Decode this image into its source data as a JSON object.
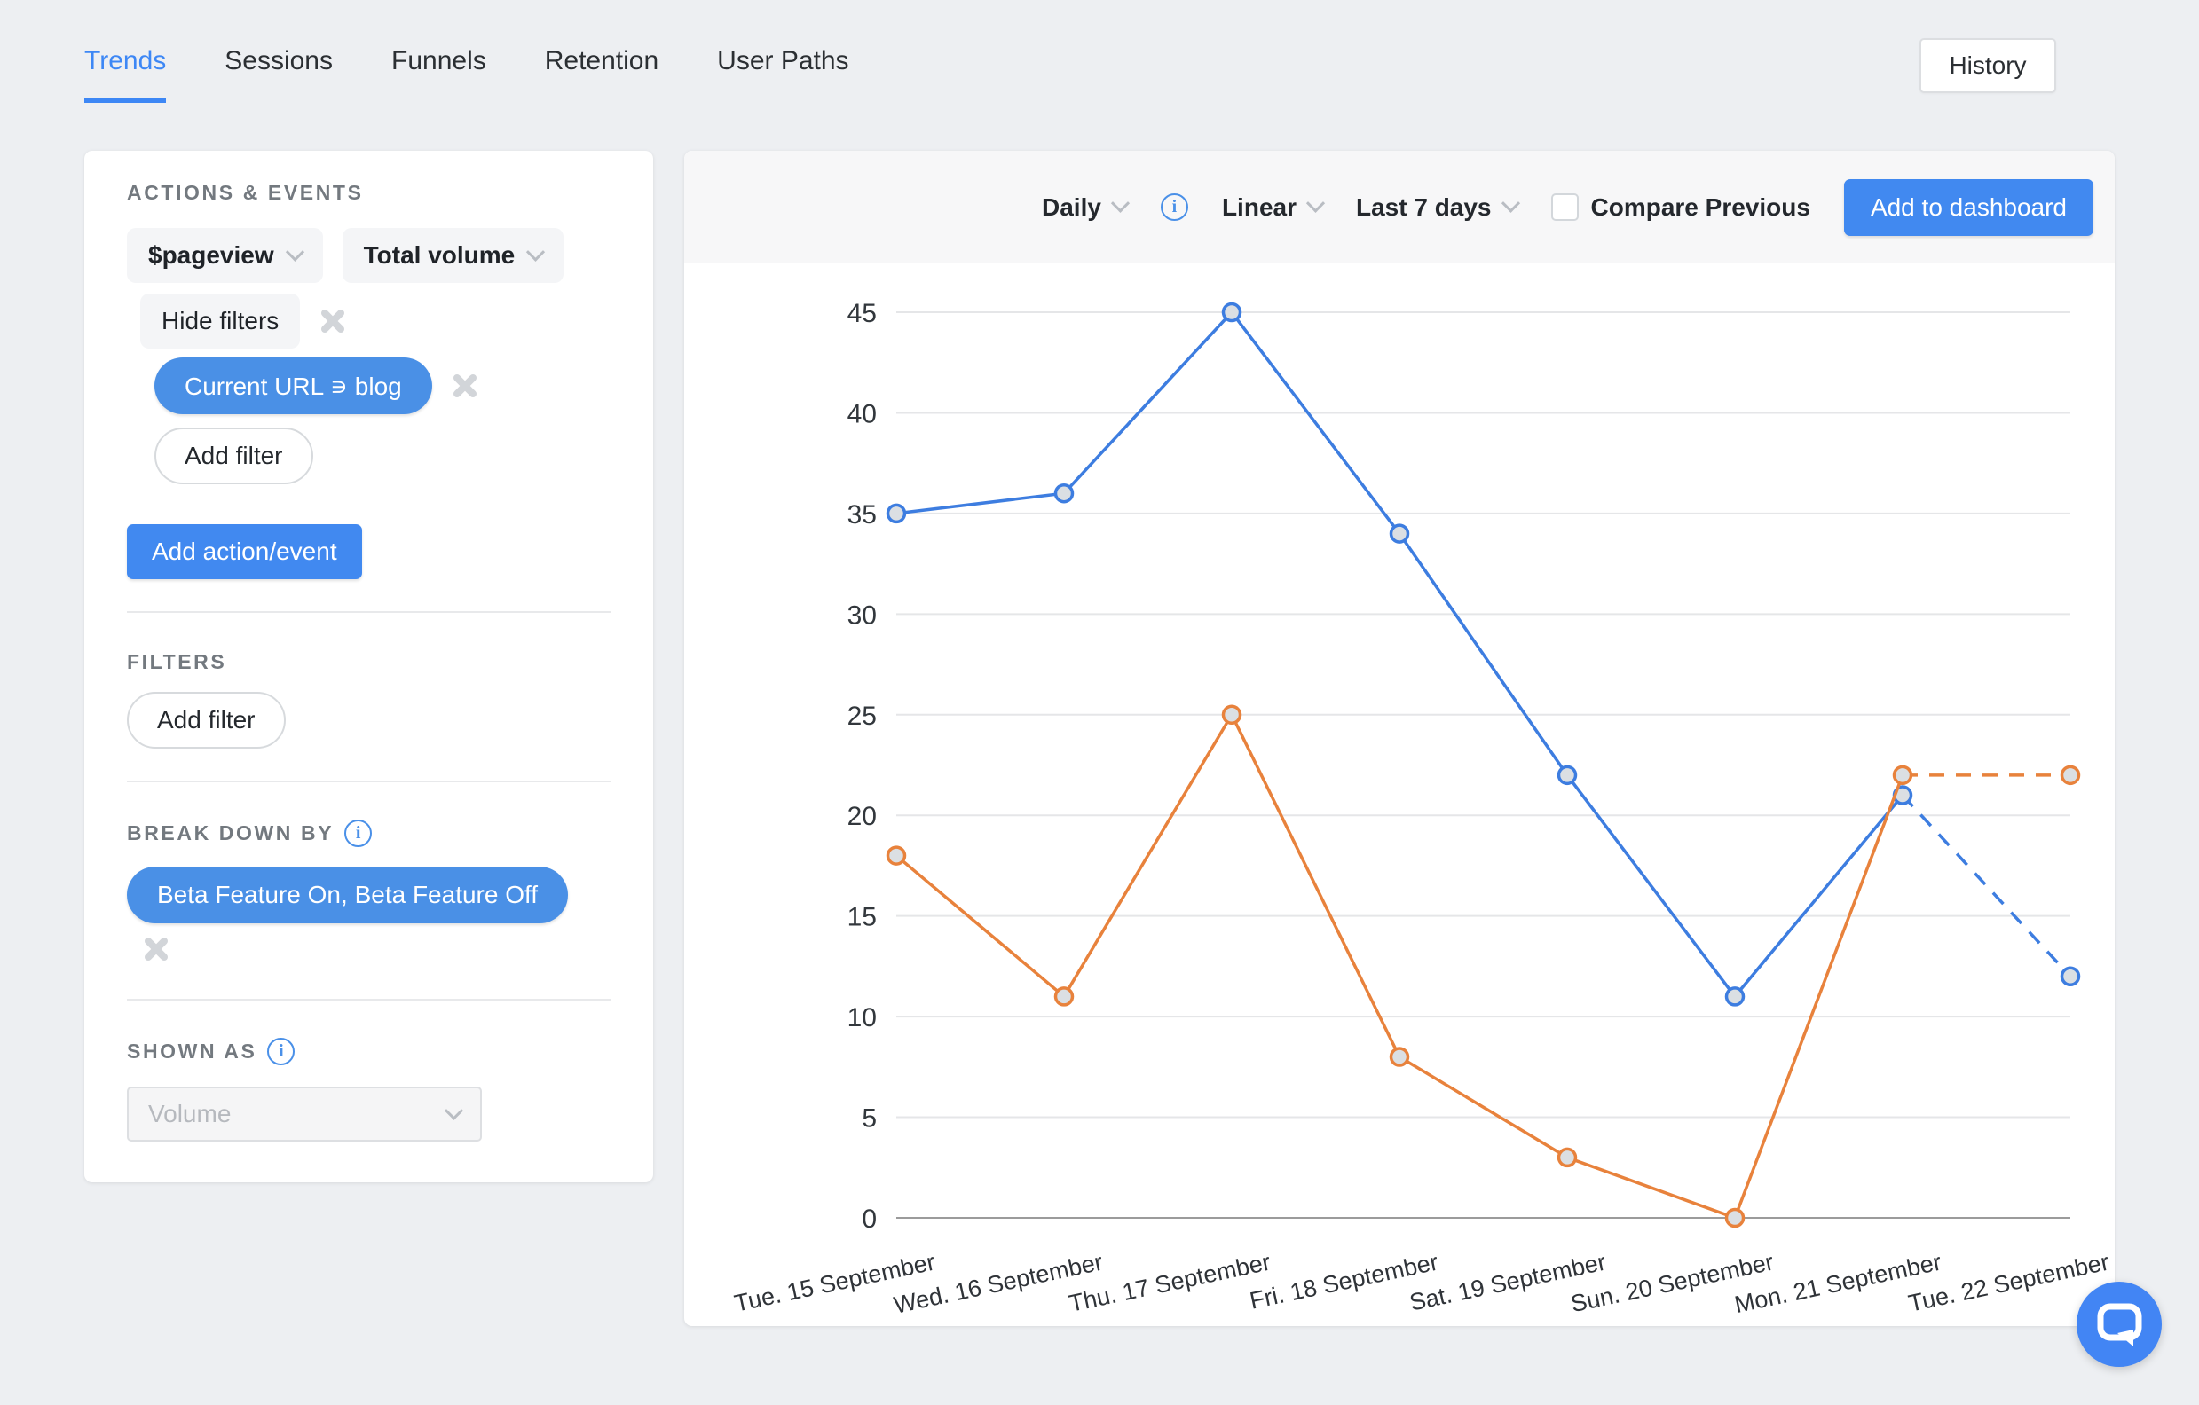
{
  "nav": {
    "tabs": [
      {
        "label": "Trends",
        "active": true
      },
      {
        "label": "Sessions",
        "active": false
      },
      {
        "label": "Funnels",
        "active": false
      },
      {
        "label": "Retention",
        "active": false
      },
      {
        "label": "User Paths",
        "active": false
      }
    ],
    "history_button": "History"
  },
  "panel": {
    "actions_events": {
      "title": "ACTIONS & EVENTS",
      "event_select": "$pageview",
      "volume_select": "Total volume",
      "hide_filters_label": "Hide filters",
      "filter_pill": "Current URL ∍ blog",
      "add_filter_label": "Add filter",
      "add_action_button": "Add action/event"
    },
    "filters": {
      "title": "FILTERS",
      "add_filter_label": "Add filter"
    },
    "breakdown": {
      "title": "BREAK DOWN BY",
      "pill": "Beta Feature On, Beta Feature Off"
    },
    "shown_as": {
      "title": "SHOWN AS",
      "value": "Volume"
    }
  },
  "chart_header": {
    "interval": "Daily",
    "display": "Linear",
    "date_range": "Last 7 days",
    "compare_label": "Compare Previous",
    "compare_checked": false,
    "add_to_dashboard": "Add to dashboard"
  },
  "chart_data": {
    "type": "line",
    "title": "",
    "xlabel": "",
    "ylabel": "",
    "categories": [
      "Tue. 15 September",
      "Wed. 16 September",
      "Thu. 17 September",
      "Fri. 18 September",
      "Sat. 19 September",
      "Sun. 20 September",
      "Mon. 21 September",
      "Tue. 22 September"
    ],
    "series": [
      {
        "name": "series-blue",
        "color": "#3d7de0",
        "values": [
          35,
          36,
          45,
          34,
          22,
          11,
          21,
          12
        ],
        "dashed_from_index": 6
      },
      {
        "name": "series-orange",
        "color": "#e8823c",
        "values": [
          18,
          11,
          25,
          8,
          3,
          0,
          22,
          22
        ],
        "dashed_from_index": 6
      }
    ],
    "ylim": [
      0,
      45
    ],
    "ytick_step": 5,
    "grid": true,
    "legend_position": "none",
    "last_segment_projected": true
  },
  "colors": {
    "accent_blue": "#4189f0",
    "pill_blue": "#4a90e6",
    "tab_active": "#3d87f5",
    "line_blue": "#3d7de0",
    "line_orange": "#e8823c",
    "point_fill": "#dbdfe3",
    "gridline": "#e5e6e8",
    "axis_line": "#9b9b9b"
  }
}
